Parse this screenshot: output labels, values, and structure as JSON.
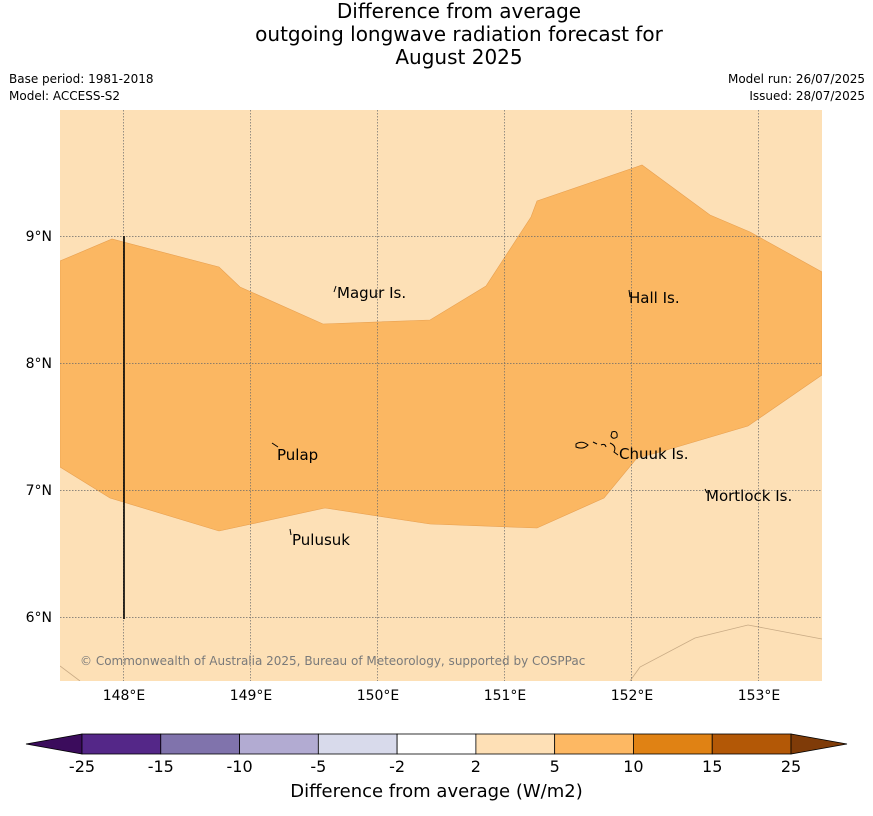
{
  "title": {
    "line1": "Difference from average",
    "line2": "outgoing longwave radiation forecast for",
    "line3": "August 2025"
  },
  "meta": {
    "base_period": "Base period: 1981-2018",
    "model": "Model: ACCESS-S2",
    "model_run": "Model run: 26/07/2025",
    "issued": "Issued: 28/07/2025"
  },
  "map": {
    "lon_ticks": [
      "148°E",
      "149°E",
      "150°E",
      "151°E",
      "152°E",
      "153°E"
    ],
    "lat_ticks": [
      "9°N",
      "8°N",
      "7°N",
      "6°N"
    ],
    "places": [
      {
        "name": "Magur Is."
      },
      {
        "name": "Hall Is."
      },
      {
        "name": "Pulap"
      },
      {
        "name": "Chuuk Is."
      },
      {
        "name": "Mortlock Is."
      },
      {
        "name": "Pulusuk"
      }
    ],
    "copyright": "© Commonwealth of Australia 2025, Bureau of Meteorology, supported by COSPPac",
    "colors": {
      "band_2_5": "#fde0b6",
      "band_5_10": "#fbb762"
    }
  },
  "colorbar": {
    "title": "Difference from average (W/m2)",
    "tick_labels": [
      "-25",
      "-15",
      "-10",
      "-5",
      "-2",
      "2",
      "5",
      "10",
      "15",
      "25"
    ],
    "colors": [
      "#3b0c5c",
      "#542788",
      "#8073ac",
      "#b2abd2",
      "#d8daeb",
      "#ffffff",
      "#fee0b6",
      "#fdb863",
      "#e08214",
      "#b35806",
      "#7f3b08"
    ]
  }
}
